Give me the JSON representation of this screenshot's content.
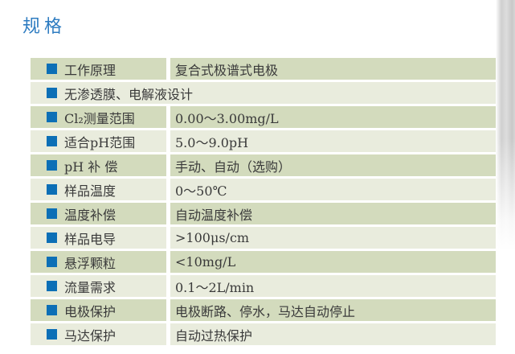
{
  "page": {
    "title": "规格"
  },
  "colors": {
    "title_blue": "#2e7cc1",
    "bullet_blue": "#0c6fb6",
    "row_dark": "#d3dbbd",
    "row_light": "#e9ecdd",
    "text": "#3a3a3a"
  },
  "table": {
    "rows": [
      {
        "label": "工作原理",
        "value": "复合式极谱式电极"
      },
      {
        "label": "无渗透膜、电解液设计",
        "value": ""
      },
      {
        "label": "Cl₂测量范围",
        "value": "0.00～3.00mg/L"
      },
      {
        "label": "适合pH范围",
        "value": "5.0～9.0pH"
      },
      {
        "label": "pH 补 偿",
        "value": "手动、自动（选购）"
      },
      {
        "label": "样品温度",
        "value": "0～50℃"
      },
      {
        "label": "温度补偿",
        "value": "自动温度补偿"
      },
      {
        "label": "样品电导",
        "value": ">100μs/cm"
      },
      {
        "label": "悬浮颗粒",
        "value": "<10mg/L"
      },
      {
        "label": "流量需求",
        "value": "0.1～2L/min"
      },
      {
        "label": "电极保护",
        "value": "电极断路、停水，马达自动停止"
      },
      {
        "label": "马达保护",
        "value": "自动过热保护"
      }
    ]
  }
}
